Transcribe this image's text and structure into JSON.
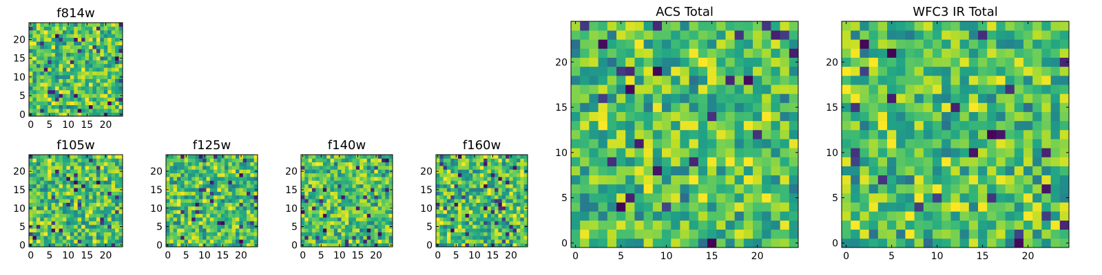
{
  "chart_data": [
    {
      "type": "heatmap",
      "title": "f814w",
      "grid": false,
      "colormap": "viridis",
      "size": [
        25,
        25
      ],
      "xlim": [
        -0.5,
        24.5
      ],
      "ylim": [
        -0.5,
        24.5
      ],
      "xticks": [
        0,
        5,
        10,
        15,
        20
      ],
      "yticks": [
        0,
        5,
        10,
        15,
        20
      ],
      "xtick_labels": [
        "0",
        "5",
        "10",
        "15",
        "20"
      ],
      "ytick_labels": [
        "0",
        "5",
        "10",
        "15",
        "20"
      ]
    },
    {
      "type": "heatmap",
      "title": "f105w",
      "grid": false,
      "colormap": "viridis",
      "size": [
        25,
        25
      ],
      "xlim": [
        -0.5,
        24.5
      ],
      "ylim": [
        -0.5,
        24.5
      ],
      "xticks": [
        0,
        5,
        10,
        15,
        20
      ],
      "yticks": [
        0,
        5,
        10,
        15,
        20
      ],
      "xtick_labels": [
        "0",
        "5",
        "10",
        "15",
        "20"
      ],
      "ytick_labels": [
        "0",
        "5",
        "10",
        "15",
        "20"
      ]
    },
    {
      "type": "heatmap",
      "title": "f125w",
      "grid": false,
      "colormap": "viridis",
      "size": [
        25,
        25
      ],
      "xlim": [
        -0.5,
        24.5
      ],
      "ylim": [
        -0.5,
        24.5
      ],
      "xticks": [
        0,
        5,
        10,
        15,
        20
      ],
      "yticks": [
        0,
        5,
        10,
        15,
        20
      ],
      "xtick_labels": [
        "0",
        "5",
        "10",
        "15",
        "20"
      ],
      "ytick_labels": [
        "0",
        "5",
        "10",
        "15",
        "20"
      ]
    },
    {
      "type": "heatmap",
      "title": "f140w",
      "grid": false,
      "colormap": "viridis",
      "size": [
        25,
        25
      ],
      "xlim": [
        -0.5,
        24.5
      ],
      "ylim": [
        -0.5,
        24.5
      ],
      "xticks": [
        0,
        5,
        10,
        15,
        20
      ],
      "yticks": [
        0,
        5,
        10,
        15,
        20
      ],
      "xtick_labels": [
        "0",
        "5",
        "10",
        "15",
        "20"
      ],
      "ytick_labels": [
        "0",
        "5",
        "10",
        "15",
        "20"
      ]
    },
    {
      "type": "heatmap",
      "title": "f160w",
      "grid": false,
      "colormap": "viridis",
      "size": [
        25,
        25
      ],
      "xlim": [
        -0.5,
        24.5
      ],
      "ylim": [
        -0.5,
        24.5
      ],
      "xticks": [
        0,
        5,
        10,
        15,
        20
      ],
      "yticks": [
        0,
        5,
        10,
        15,
        20
      ],
      "xtick_labels": [
        "0",
        "5",
        "10",
        "15",
        "20"
      ],
      "ytick_labels": [
        "0",
        "5",
        "10",
        "15",
        "20"
      ]
    },
    {
      "type": "heatmap",
      "title": "ACS Total",
      "grid": false,
      "colormap": "viridis",
      "size": [
        25,
        25
      ],
      "xlim": [
        -0.5,
        24.5
      ],
      "ylim": [
        -0.5,
        24.5
      ],
      "xticks": [
        0,
        5,
        10,
        15,
        20
      ],
      "yticks": [
        0,
        5,
        10,
        15,
        20
      ],
      "xtick_labels": [
        "0",
        "5",
        "10",
        "15",
        "20"
      ],
      "ytick_labels": [
        "0",
        "5",
        "10",
        "15",
        "20"
      ]
    },
    {
      "type": "heatmap",
      "title": "WFC3 IR Total",
      "grid": false,
      "colormap": "viridis",
      "size": [
        25,
        25
      ],
      "xlim": [
        -0.5,
        24.5
      ],
      "ylim": [
        -0.5,
        24.5
      ],
      "xticks": [
        0,
        5,
        10,
        15,
        20
      ],
      "yticks": [
        0,
        5,
        10,
        15,
        20
      ],
      "xtick_labels": [
        "0",
        "5",
        "10",
        "15",
        "20"
      ],
      "ytick_labels": [
        "0",
        "5",
        "10",
        "15",
        "20"
      ]
    }
  ]
}
